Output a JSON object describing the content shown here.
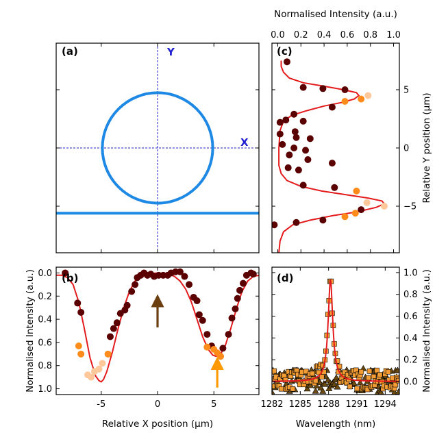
{
  "colors": {
    "fit": "#e41a1c",
    "ring": "#1e88e5",
    "crosshair": "#1f1fd0",
    "dark_point": "#5a0000",
    "orange_point": "#ff8c1a",
    "pale_point": "#ffc89a",
    "arrow_brown": "#6b3f10",
    "arrow_orange": "#ff9900"
  },
  "chart_data": [
    {
      "id": "a",
      "type": "diagram",
      "panel_label": "(a)",
      "axis_labels": {
        "y": "Y",
        "x": "X"
      },
      "ring": {
        "center": [
          0,
          0
        ],
        "radius_um": 4.9
      },
      "waveguide_y_um": -5.6,
      "xlim": [
        -9,
        9
      ],
      "ylim": [
        -9,
        9
      ],
      "x_ticks": [
        -5,
        0,
        5
      ],
      "y_ticks": [
        -5,
        0,
        5
      ]
    },
    {
      "id": "b",
      "type": "scatter",
      "panel_label": "(b)",
      "xlabel": "Relative X position (μm)",
      "ylabel": "Normalised Intensity (a.u.)",
      "xlim": [
        -9,
        9
      ],
      "ylim": [
        1.05,
        -0.05
      ],
      "y_inverted": true,
      "x_ticks": [
        -5,
        0,
        5
      ],
      "y_ticks": [
        0.0,
        0.2,
        0.4,
        0.6,
        0.8,
        1.0
      ],
      "y_tick_labels": [
        "0.0",
        "0.2",
        "0.4",
        "0.6",
        "0.8",
        "1.0"
      ],
      "points": [
        {
          "x": -8.2,
          "y": 0.0,
          "c": "dark"
        },
        {
          "x": -7.1,
          "y": 0.26,
          "c": "dark"
        },
        {
          "x": -6.8,
          "y": 0.34,
          "c": "dark"
        },
        {
          "x": -7.0,
          "y": 0.63,
          "c": "orange"
        },
        {
          "x": -6.8,
          "y": 0.7,
          "c": "orange"
        },
        {
          "x": -6.2,
          "y": 0.88,
          "c": "pale"
        },
        {
          "x": -5.9,
          "y": 0.9,
          "c": "pale"
        },
        {
          "x": -5.6,
          "y": 0.85,
          "c": "pale"
        },
        {
          "x": -5.2,
          "y": 0.83,
          "c": "pale"
        },
        {
          "x": -4.9,
          "y": 0.78,
          "c": "pale"
        },
        {
          "x": -4.4,
          "y": 0.7,
          "c": "orange"
        },
        {
          "x": -4.2,
          "y": 0.55,
          "c": "dark"
        },
        {
          "x": -3.9,
          "y": 0.48,
          "c": "dark"
        },
        {
          "x": -3.6,
          "y": 0.43,
          "c": "dark"
        },
        {
          "x": -3.3,
          "y": 0.35,
          "c": "dark"
        },
        {
          "x": -2.9,
          "y": 0.32,
          "c": "dark"
        },
        {
          "x": -2.7,
          "y": 0.28,
          "c": "dark"
        },
        {
          "x": -2.3,
          "y": 0.16,
          "c": "dark"
        },
        {
          "x": -2.0,
          "y": 0.1,
          "c": "dark"
        },
        {
          "x": -1.8,
          "y": 0.04,
          "c": "dark"
        },
        {
          "x": -1.5,
          "y": 0.02,
          "c": "dark"
        },
        {
          "x": -1.2,
          "y": 0.0,
          "c": "dark"
        },
        {
          "x": -0.9,
          "y": 0.02,
          "c": "dark"
        },
        {
          "x": -0.6,
          "y": 0.01,
          "c": "dark"
        },
        {
          "x": -0.3,
          "y": 0.03,
          "c": "dark"
        },
        {
          "x": 0.1,
          "y": 0.02,
          "c": "dark"
        },
        {
          "x": 0.5,
          "y": 0.02,
          "c": "dark"
        },
        {
          "x": 0.9,
          "y": 0.02,
          "c": "dark"
        },
        {
          "x": 1.2,
          "y": 0.0,
          "c": "dark"
        },
        {
          "x": 1.6,
          "y": -0.01,
          "c": "dark"
        },
        {
          "x": 2.0,
          "y": -0.01,
          "c": "dark"
        },
        {
          "x": 2.4,
          "y": 0.03,
          "c": "dark"
        },
        {
          "x": 2.8,
          "y": 0.1,
          "c": "dark"
        },
        {
          "x": 3.2,
          "y": 0.21,
          "c": "dark"
        },
        {
          "x": 3.5,
          "y": 0.24,
          "c": "dark"
        },
        {
          "x": 3.7,
          "y": 0.36,
          "c": "dark"
        },
        {
          "x": 4.0,
          "y": 0.41,
          "c": "dark"
        },
        {
          "x": 4.4,
          "y": 0.53,
          "c": "dark"
        },
        {
          "x": 4.8,
          "y": 0.63,
          "c": "dark"
        },
        {
          "x": 4.4,
          "y": 0.64,
          "c": "orange"
        },
        {
          "x": 5.0,
          "y": 0.66,
          "c": "orange"
        },
        {
          "x": 5.3,
          "y": 0.69,
          "c": "orange"
        },
        {
          "x": 5.6,
          "y": 0.72,
          "c": "orange"
        },
        {
          "x": 5.8,
          "y": 0.65,
          "c": "dark"
        },
        {
          "x": 6.3,
          "y": 0.53,
          "c": "dark"
        },
        {
          "x": 6.6,
          "y": 0.39,
          "c": "dark"
        },
        {
          "x": 6.9,
          "y": 0.31,
          "c": "dark"
        },
        {
          "x": 7.1,
          "y": 0.22,
          "c": "dark"
        },
        {
          "x": 7.3,
          "y": 0.15,
          "c": "dark"
        },
        {
          "x": 7.6,
          "y": 0.09,
          "c": "dark"
        },
        {
          "x": 7.9,
          "y": 0.02,
          "c": "dark"
        },
        {
          "x": 8.3,
          "y": 0.0,
          "c": "dark"
        },
        {
          "x": 8.5,
          "y": 0.01,
          "c": "dark"
        }
      ],
      "fit_curve": [
        [
          -9,
          0.02
        ],
        [
          -8.5,
          0.02
        ],
        [
          -8,
          0.04
        ],
        [
          -7.5,
          0.1
        ],
        [
          -7,
          0.25
        ],
        [
          -6.5,
          0.48
        ],
        [
          -6,
          0.73
        ],
        [
          -5.5,
          0.89
        ],
        [
          -5.2,
          0.93
        ],
        [
          -5,
          0.94
        ],
        [
          -4.8,
          0.92
        ],
        [
          -4.5,
          0.85
        ],
        [
          -4,
          0.68
        ],
        [
          -3.5,
          0.48
        ],
        [
          -3,
          0.3
        ],
        [
          -2.5,
          0.16
        ],
        [
          -2,
          0.07
        ],
        [
          -1.5,
          0.03
        ],
        [
          -1,
          0.01
        ],
        [
          0,
          0.0
        ],
        [
          1,
          0.01
        ],
        [
          1.5,
          0.03
        ],
        [
          2,
          0.07
        ],
        [
          2.5,
          0.14
        ],
        [
          3,
          0.25
        ],
        [
          3.5,
          0.4
        ],
        [
          4,
          0.55
        ],
        [
          4.5,
          0.66
        ],
        [
          4.9,
          0.71
        ],
        [
          5.2,
          0.72
        ],
        [
          5.6,
          0.7
        ],
        [
          6,
          0.63
        ],
        [
          6.5,
          0.48
        ],
        [
          7,
          0.31
        ],
        [
          7.5,
          0.16
        ],
        [
          8,
          0.07
        ],
        [
          8.5,
          0.03
        ],
        [
          9,
          0.02
        ]
      ],
      "arrows": [
        {
          "x": 0.0,
          "y_tail": 0.47,
          "y_head": 0.24,
          "color": "brown"
        },
        {
          "x": 5.3,
          "y_tail": 0.99,
          "y_head": 0.78,
          "color": "orange"
        }
      ]
    },
    {
      "id": "c",
      "type": "scatter",
      "panel_label": "(c)",
      "top_xlabel": "Normalised Intensity (a.u.)",
      "right_ylabel": "Relative Y position (μm)",
      "xlim": [
        -0.05,
        1.05
      ],
      "ylim": [
        -9,
        9
      ],
      "x_ticks": [
        0.0,
        0.2,
        0.4,
        0.6,
        0.8,
        1.0
      ],
      "x_tick_labels": [
        "0.0",
        "0.2",
        "0.4",
        "0.6",
        "0.8",
        "1.0"
      ],
      "y_ticks": [
        -5,
        0,
        5
      ],
      "points": [
        {
          "x": 0.08,
          "y": 7.4,
          "c": "dark"
        },
        {
          "x": 0.22,
          "y": 5.2,
          "c": "dark"
        },
        {
          "x": 0.39,
          "y": 5.1,
          "c": "dark"
        },
        {
          "x": 0.58,
          "y": 5.0,
          "c": "dark"
        },
        {
          "x": 0.78,
          "y": 4.5,
          "c": "pale"
        },
        {
          "x": 0.72,
          "y": 4.2,
          "c": "orange"
        },
        {
          "x": 0.58,
          "y": 4.0,
          "c": "orange"
        },
        {
          "x": 0.47,
          "y": 3.5,
          "c": "dark"
        },
        {
          "x": 0.14,
          "y": 2.9,
          "c": "dark"
        },
        {
          "x": 0.07,
          "y": 2.4,
          "c": "dark"
        },
        {
          "x": 0.02,
          "y": 2.2,
          "c": "dark"
        },
        {
          "x": 0.22,
          "y": 2.3,
          "c": "dark"
        },
        {
          "x": 0.15,
          "y": 1.4,
          "c": "dark"
        },
        {
          "x": 0.02,
          "y": 1.2,
          "c": "dark"
        },
        {
          "x": 0.16,
          "y": 0.9,
          "c": "dark"
        },
        {
          "x": 0.28,
          "y": 0.8,
          "c": "dark"
        },
        {
          "x": 0.04,
          "y": 0.3,
          "c": "dark"
        },
        {
          "x": 0.14,
          "y": 0.0,
          "c": "dark"
        },
        {
          "x": 0.24,
          "y": -0.2,
          "c": "dark"
        },
        {
          "x": 0.1,
          "y": -0.6,
          "c": "dark"
        },
        {
          "x": 0.26,
          "y": -1.0,
          "c": "dark"
        },
        {
          "x": 0.47,
          "y": -1.3,
          "c": "dark"
        },
        {
          "x": 0.09,
          "y": -1.7,
          "c": "dark"
        },
        {
          "x": 0.18,
          "y": -1.9,
          "c": "dark"
        },
        {
          "x": 0.22,
          "y": -3.2,
          "c": "dark"
        },
        {
          "x": 0.49,
          "y": -3.4,
          "c": "dark"
        },
        {
          "x": 0.68,
          "y": -3.7,
          "c": "orange"
        },
        {
          "x": 0.77,
          "y": -4.7,
          "c": "pale"
        },
        {
          "x": 0.92,
          "y": -5.0,
          "c": "pale"
        },
        {
          "x": 0.72,
          "y": -5.3,
          "c": "dark"
        },
        {
          "x": 0.67,
          "y": -5.6,
          "c": "orange"
        },
        {
          "x": 0.58,
          "y": -5.9,
          "c": "orange"
        },
        {
          "x": 0.39,
          "y": -6.2,
          "c": "dark"
        },
        {
          "x": 0.16,
          "y": -6.4,
          "c": "dark"
        },
        {
          "x": -0.03,
          "y": -6.6,
          "c": "dark"
        }
      ],
      "fit_curve": [
        [
          0.03,
          7.5
        ],
        [
          0.03,
          7.0
        ],
        [
          0.05,
          6.5
        ],
        [
          0.1,
          6.0
        ],
        [
          0.22,
          5.6
        ],
        [
          0.4,
          5.3
        ],
        [
          0.57,
          5.0
        ],
        [
          0.68,
          4.75
        ],
        [
          0.7,
          4.5
        ],
        [
          0.66,
          4.2
        ],
        [
          0.55,
          3.9
        ],
        [
          0.4,
          3.6
        ],
        [
          0.25,
          3.2
        ],
        [
          0.12,
          2.8
        ],
        [
          0.05,
          2.3
        ],
        [
          0.02,
          1.5
        ],
        [
          0.01,
          0.0
        ],
        [
          0.01,
          -1.5
        ],
        [
          0.03,
          -2.2
        ],
        [
          0.08,
          -2.8
        ],
        [
          0.2,
          -3.3
        ],
        [
          0.38,
          -3.7
        ],
        [
          0.58,
          -4.0
        ],
        [
          0.78,
          -4.3
        ],
        [
          0.9,
          -4.55
        ],
        [
          0.92,
          -4.8
        ],
        [
          0.85,
          -5.1
        ],
        [
          0.68,
          -5.5
        ],
        [
          0.48,
          -5.8
        ],
        [
          0.28,
          -6.2
        ],
        [
          0.13,
          -6.6
        ],
        [
          0.05,
          -7.2
        ],
        [
          0.02,
          -8.0
        ],
        [
          0.01,
          -9.0
        ]
      ]
    },
    {
      "id": "d",
      "type": "scatter",
      "panel_label": "(d)",
      "xlabel": "Wavelength (nm)",
      "right_ylabel": "Normalised Intensity (a.u.)",
      "xlim": [
        1282,
        1295.5
      ],
      "ylim": [
        -0.12,
        1.05
      ],
      "x_ticks": [
        1282,
        1285,
        1288,
        1291,
        1294
      ],
      "y_ticks": [
        0.0,
        0.2,
        0.4,
        0.6,
        0.8,
        1.0
      ],
      "y_tick_labels": [
        "0.0",
        "0.2",
        "0.4",
        "0.6",
        "0.8",
        "1.0"
      ],
      "series": [
        {
          "name": "",
          "marker": "square",
          "color": "#f39c34",
          "peak_nm": 1288.2,
          "peak_value": 0.92
        },
        {
          "name": "",
          "marker": "triangle",
          "color": "#6b4a12",
          "peak_nm": null,
          "peak_value": 0.0
        }
      ],
      "fit_curve": {
        "center_nm": 1288.2,
        "fwhm_nm": 0.6,
        "peak_value": 0.93,
        "baseline": 0.0
      }
    }
  ]
}
